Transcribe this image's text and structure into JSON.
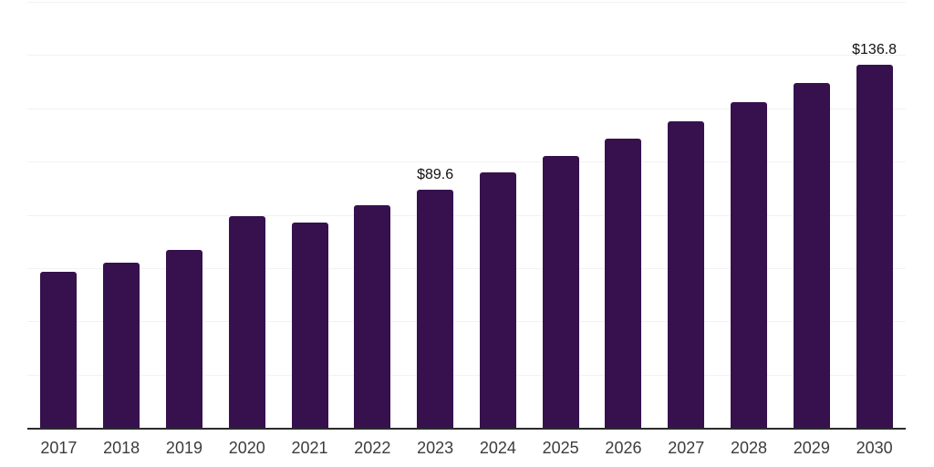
{
  "chart_data": {
    "type": "bar",
    "title": "",
    "xlabel": "",
    "ylabel": "",
    "categories": [
      "2017",
      "2018",
      "2019",
      "2020",
      "2021",
      "2022",
      "2023",
      "2024",
      "2025",
      "2026",
      "2027",
      "2028",
      "2029",
      "2030"
    ],
    "values": [
      59.0,
      62.4,
      67.2,
      79.8,
      77.6,
      84.0,
      89.6,
      96.2,
      102.5,
      109.0,
      115.4,
      122.5,
      129.9,
      136.8
    ],
    "data_labels": [
      {
        "category": "2023",
        "text": "$89.6"
      },
      {
        "category": "2030",
        "text": "$136.8"
      }
    ],
    "ylim": [
      0,
      160
    ],
    "y_grid_step": 20,
    "grid": true,
    "legend": false,
    "y_axis_labels_visible": false,
    "colors": {
      "bar": "#36114e",
      "grid": "#f2f2f2",
      "axis": "#2b2b2b",
      "tick_label": "#3c3c3c",
      "data_label": "#111111",
      "background": "#ffffff"
    }
  }
}
